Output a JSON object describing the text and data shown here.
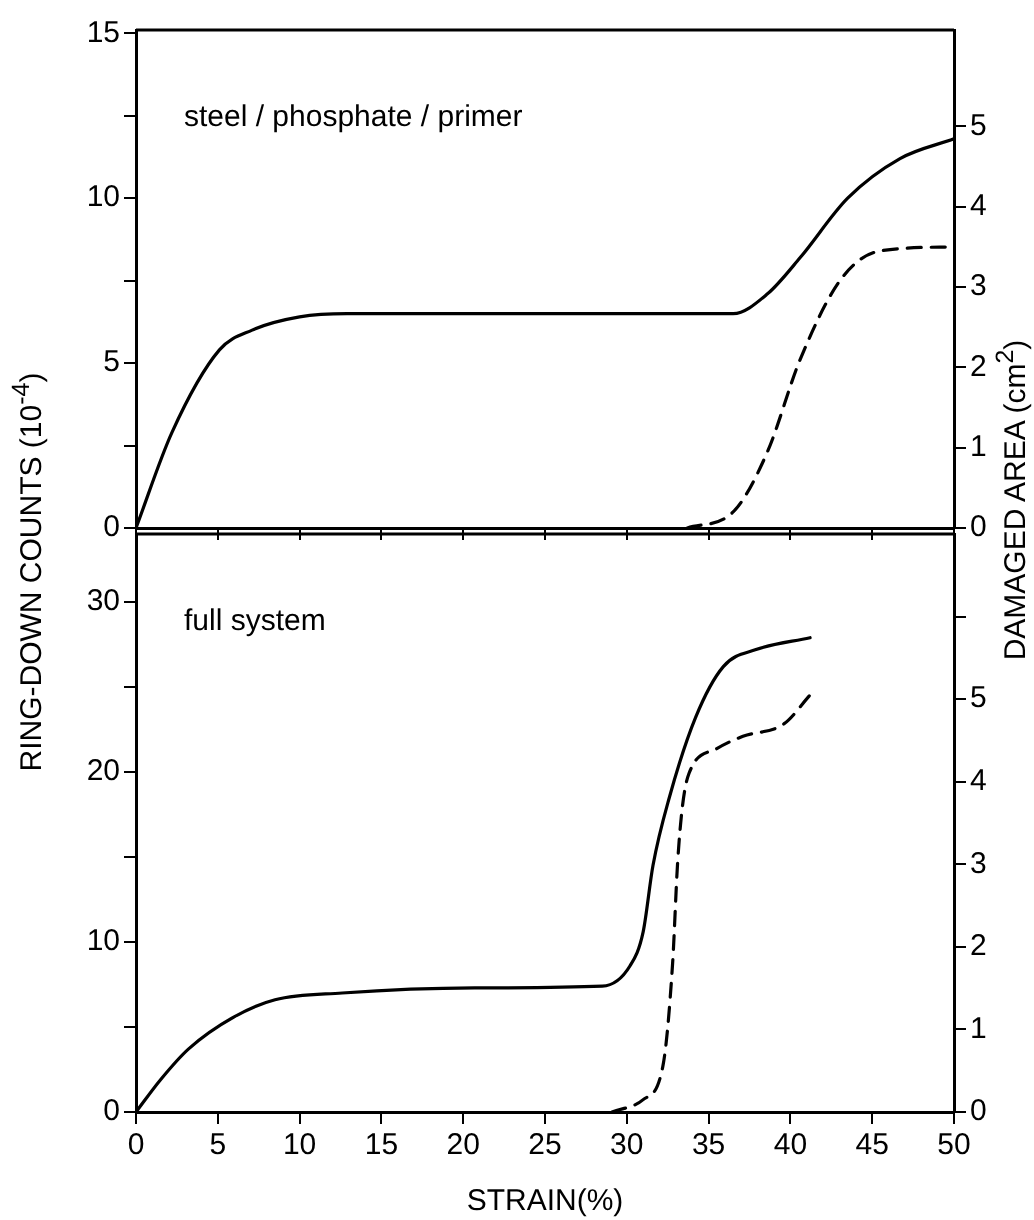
{
  "chart_data": [
    {
      "type": "line",
      "ylabel": "RING-DOWN COUNTS (10$^{-4}$)",
      "y2label": "DAMAGED AREA (cm$^{2}$)",
      "annotations": [
        "steel / phosphate / primer"
      ],
      "xlim": [
        0,
        50
      ],
      "xticks": [
        0,
        5,
        10,
        15,
        20,
        25,
        30,
        35,
        40,
        45,
        50
      ],
      "ylim": [
        0,
        15.1
      ],
      "yticks": [
        0,
        {
          "value": 2.5,
          "label": null
        },
        5,
        {
          "value": 7.5,
          "label": null
        },
        10,
        {
          "value": 12.5,
          "label": null
        },
        15
      ],
      "y2lim": [
        0,
        6.2
      ],
      "y2ticks": [
        0,
        1,
        2,
        3,
        4,
        5
      ],
      "tick_labels": "y",
      "grid": false,
      "legend": false,
      "marker": "none",
      "series": [
        {
          "color": "#000000",
          "line_style": "solid",
          "x": [
            0,
            2.2,
            5.1,
            7.1,
            10,
            12.9,
            20,
            30,
            36.5,
            38.6,
            40.6,
            43.5,
            46.7,
            50
          ],
          "values": [
            0,
            2.9,
            5.4,
            6,
            6.4,
            6.5,
            6.5,
            6.5,
            6.5,
            7.1,
            8.2,
            10,
            11.2,
            11.8
          ]
        },
        {
          "color": "#000000",
          "line_style": "dashed",
          "axis": "y2",
          "x": [
            33.7,
            36.5,
            38.6,
            40.6,
            43.1,
            45.5,
            50
          ],
          "values": [
            0,
            0.2,
            0.95,
            2.1,
            3.1,
            3.45,
            3.5
          ]
        }
      ]
    },
    {
      "type": "line",
      "xlabel": "STRAIN(%)",
      "annotations": [
        "full system"
      ],
      "xlim": [
        0,
        50
      ],
      "xticks": [
        0,
        5,
        10,
        15,
        20,
        25,
        30,
        35,
        40,
        45,
        50
      ],
      "ylim": [
        0,
        34
      ],
      "yticks": [
        0,
        {
          "value": 5,
          "label": null
        },
        10,
        {
          "value": 15,
          "label": null
        },
        20,
        {
          "value": 25,
          "label": null
        },
        30
      ],
      "y2lim": [
        0,
        7
      ],
      "y2ticks": [
        0,
        1,
        2,
        3,
        4,
        5,
        {
          "value": 6,
          "label": null
        }
      ],
      "grid": false,
      "legend": false,
      "marker": "none",
      "series": [
        {
          "color": "#000000",
          "line_style": "solid",
          "x": [
            0,
            1.5,
            3.2,
            6,
            8.5,
            12.6,
            20.7,
            28.5,
            30.2,
            31,
            31.6,
            32.6,
            34.2,
            35.9,
            37.9,
            41.2
          ],
          "values": [
            0,
            1.9,
            3.7,
            5.6,
            6.6,
            7,
            7.3,
            7.4,
            8.6,
            10.6,
            14.5,
            18.5,
            23.2,
            26.2,
            27.2,
            27.9
          ]
        },
        {
          "color": "#000000",
          "line_style": "dashed",
          "axis": "y2",
          "x": [
            29.1,
            31,
            32.2,
            32.8,
            33.1,
            33.4,
            33.8,
            35.5,
            37.1,
            39.6,
            41.2
          ],
          "values": [
            0,
            0.15,
            0.55,
            1.8,
            3,
            3.7,
            4.1,
            4.4,
            4.55,
            4.7,
            5.05
          ]
        }
      ]
    }
  ]
}
